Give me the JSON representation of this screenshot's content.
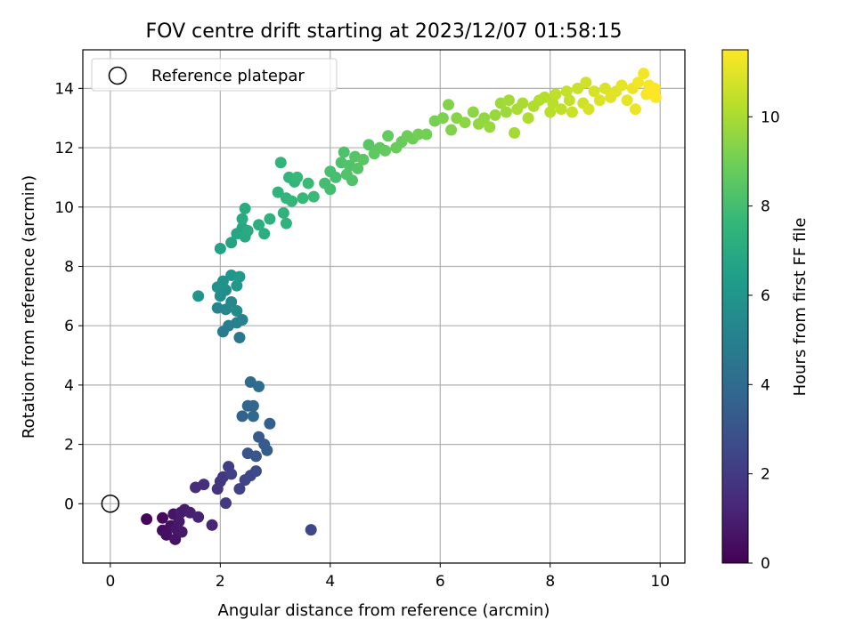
{
  "chart_data": {
    "type": "scatter",
    "title": "FOV centre drift starting at 2023/12/07 01:58:15",
    "xlabel": "Angular distance from reference (arcmin)",
    "ylabel": "Rotation from reference (arcmin)",
    "xlim": [
      -0.5,
      10.45
    ],
    "ylim": [
      -2.0,
      15.3
    ],
    "xticks": [
      0,
      2,
      4,
      6,
      8,
      10
    ],
    "yticks": [
      0,
      2,
      4,
      6,
      8,
      10,
      12,
      14
    ],
    "grid": true,
    "legend": {
      "placement": "top-left",
      "entries": [
        "Reference platepar"
      ]
    },
    "reference_point": {
      "x": 0,
      "y": 0
    },
    "colorbar": {
      "label": "Hours from first FF file",
      "range": [
        0,
        11.5
      ],
      "ticks": [
        0,
        2,
        4,
        6,
        8,
        10
      ],
      "colormap": "viridis",
      "colors": [
        "#440154",
        "#482878",
        "#3e4989",
        "#31688e",
        "#26828e",
        "#1f9e89",
        "#35b779",
        "#6ece58",
        "#b5de2b",
        "#fde725"
      ]
    },
    "points": [
      {
        "x": 0.66,
        "y": -0.52,
        "c": 0.2
      },
      {
        "x": 0.95,
        "y": -0.48,
        "c": 0.3
      },
      {
        "x": 0.95,
        "y": -0.9,
        "c": 0.4
      },
      {
        "x": 1.02,
        "y": -1.05,
        "c": 0.5
      },
      {
        "x": 1.1,
        "y": -0.75,
        "c": 0.5
      },
      {
        "x": 1.15,
        "y": -0.35,
        "c": 0.6
      },
      {
        "x": 1.18,
        "y": -1.2,
        "c": 0.6
      },
      {
        "x": 1.2,
        "y": -0.85,
        "c": 0.7
      },
      {
        "x": 1.25,
        "y": -0.6,
        "c": 0.8
      },
      {
        "x": 1.3,
        "y": -0.95,
        "c": 0.8
      },
      {
        "x": 1.35,
        "y": -0.2,
        "c": 0.9
      },
      {
        "x": 1.28,
        "y": -0.3,
        "c": 0.9
      },
      {
        "x": 1.45,
        "y": -0.3,
        "c": 1.0
      },
      {
        "x": 1.6,
        "y": -0.45,
        "c": 1.1
      },
      {
        "x": 1.85,
        "y": -0.72,
        "c": 1.2
      },
      {
        "x": 1.55,
        "y": 0.55,
        "c": 1.5
      },
      {
        "x": 1.7,
        "y": 0.65,
        "c": 1.6
      },
      {
        "x": 1.95,
        "y": 0.5,
        "c": 1.7
      },
      {
        "x": 2.0,
        "y": 0.75,
        "c": 1.8
      },
      {
        "x": 2.05,
        "y": 0.9,
        "c": 1.9
      },
      {
        "x": 2.1,
        "y": 0.02,
        "c": 2.0
      },
      {
        "x": 2.15,
        "y": 1.25,
        "c": 2.1
      },
      {
        "x": 2.2,
        "y": 1.0,
        "c": 2.2
      },
      {
        "x": 2.35,
        "y": 0.5,
        "c": 2.3
      },
      {
        "x": 2.45,
        "y": 0.8,
        "c": 2.4
      },
      {
        "x": 2.55,
        "y": 0.95,
        "c": 2.5
      },
      {
        "x": 2.65,
        "y": 1.1,
        "c": 2.6
      },
      {
        "x": 3.65,
        "y": -0.88,
        "c": 2.5
      },
      {
        "x": 2.5,
        "y": 1.7,
        "c": 3.0
      },
      {
        "x": 2.65,
        "y": 1.6,
        "c": 3.1
      },
      {
        "x": 2.7,
        "y": 2.25,
        "c": 3.2
      },
      {
        "x": 2.8,
        "y": 2.0,
        "c": 3.3
      },
      {
        "x": 2.85,
        "y": 1.8,
        "c": 3.4
      },
      {
        "x": 2.9,
        "y": 2.7,
        "c": 3.5
      },
      {
        "x": 2.4,
        "y": 2.95,
        "c": 3.6
      },
      {
        "x": 2.5,
        "y": 3.3,
        "c": 3.7
      },
      {
        "x": 2.6,
        "y": 3.3,
        "c": 3.8
      },
      {
        "x": 2.6,
        "y": 2.95,
        "c": 3.9
      },
      {
        "x": 2.55,
        "y": 4.1,
        "c": 4.0
      },
      {
        "x": 2.7,
        "y": 3.95,
        "c": 4.1
      },
      {
        "x": 2.35,
        "y": 5.6,
        "c": 4.6
      },
      {
        "x": 2.05,
        "y": 5.8,
        "c": 4.8
      },
      {
        "x": 2.15,
        "y": 6.0,
        "c": 4.9
      },
      {
        "x": 2.3,
        "y": 6.1,
        "c": 5.0
      },
      {
        "x": 2.4,
        "y": 6.2,
        "c": 5.1
      },
      {
        "x": 1.95,
        "y": 6.6,
        "c": 5.2
      },
      {
        "x": 2.1,
        "y": 6.55,
        "c": 5.3
      },
      {
        "x": 2.2,
        "y": 6.8,
        "c": 5.4
      },
      {
        "x": 2.3,
        "y": 6.5,
        "c": 5.5
      },
      {
        "x": 2.0,
        "y": 7.0,
        "c": 5.6
      },
      {
        "x": 2.1,
        "y": 7.2,
        "c": 5.7
      },
      {
        "x": 1.95,
        "y": 7.3,
        "c": 5.8
      },
      {
        "x": 2.05,
        "y": 7.5,
        "c": 5.9
      },
      {
        "x": 2.2,
        "y": 7.7,
        "c": 6.0
      },
      {
        "x": 2.3,
        "y": 7.35,
        "c": 6.1
      },
      {
        "x": 2.35,
        "y": 7.65,
        "c": 6.2
      },
      {
        "x": 1.6,
        "y": 7.0,
        "c": 6.0
      },
      {
        "x": 2.0,
        "y": 8.6,
        "c": 6.6
      },
      {
        "x": 2.2,
        "y": 8.8,
        "c": 6.7
      },
      {
        "x": 2.3,
        "y": 9.1,
        "c": 6.8
      },
      {
        "x": 2.4,
        "y": 9.3,
        "c": 6.8
      },
      {
        "x": 2.45,
        "y": 9.0,
        "c": 6.9
      },
      {
        "x": 2.5,
        "y": 9.2,
        "c": 7.0
      },
      {
        "x": 2.4,
        "y": 9.6,
        "c": 7.0
      },
      {
        "x": 2.45,
        "y": 9.95,
        "c": 7.1
      },
      {
        "x": 2.7,
        "y": 9.4,
        "c": 7.2
      },
      {
        "x": 2.8,
        "y": 9.1,
        "c": 7.2
      },
      {
        "x": 2.9,
        "y": 9.6,
        "c": 7.3
      },
      {
        "x": 3.05,
        "y": 10.5,
        "c": 7.4
      },
      {
        "x": 3.15,
        "y": 9.8,
        "c": 7.4
      },
      {
        "x": 3.2,
        "y": 10.3,
        "c": 7.5
      },
      {
        "x": 3.25,
        "y": 11.0,
        "c": 7.5
      },
      {
        "x": 3.3,
        "y": 10.2,
        "c": 7.6
      },
      {
        "x": 3.35,
        "y": 10.85,
        "c": 7.6
      },
      {
        "x": 3.4,
        "y": 11.0,
        "c": 7.7
      },
      {
        "x": 3.5,
        "y": 10.3,
        "c": 7.7
      },
      {
        "x": 3.6,
        "y": 10.8,
        "c": 7.8
      },
      {
        "x": 3.7,
        "y": 10.35,
        "c": 7.8
      },
      {
        "x": 3.1,
        "y": 11.5,
        "c": 7.5
      },
      {
        "x": 3.2,
        "y": 9.45,
        "c": 7.4
      },
      {
        "x": 3.9,
        "y": 10.8,
        "c": 8.0
      },
      {
        "x": 4.0,
        "y": 10.6,
        "c": 8.0
      },
      {
        "x": 4.0,
        "y": 11.2,
        "c": 8.1
      },
      {
        "x": 4.1,
        "y": 11.0,
        "c": 8.1
      },
      {
        "x": 4.2,
        "y": 11.5,
        "c": 8.2
      },
      {
        "x": 4.25,
        "y": 11.85,
        "c": 8.2
      },
      {
        "x": 4.3,
        "y": 11.1,
        "c": 8.3
      },
      {
        "x": 4.35,
        "y": 11.4,
        "c": 8.3
      },
      {
        "x": 4.4,
        "y": 10.9,
        "c": 8.3
      },
      {
        "x": 4.45,
        "y": 11.7,
        "c": 8.4
      },
      {
        "x": 4.5,
        "y": 11.3,
        "c": 8.4
      },
      {
        "x": 4.6,
        "y": 11.6,
        "c": 8.5
      },
      {
        "x": 4.7,
        "y": 12.1,
        "c": 8.5
      },
      {
        "x": 4.8,
        "y": 11.8,
        "c": 8.6
      },
      {
        "x": 4.9,
        "y": 12.0,
        "c": 8.6
      },
      {
        "x": 5.0,
        "y": 11.9,
        "c": 8.7
      },
      {
        "x": 5.05,
        "y": 12.4,
        "c": 8.7
      },
      {
        "x": 5.2,
        "y": 12.0,
        "c": 8.8
      },
      {
        "x": 5.3,
        "y": 12.2,
        "c": 8.8
      },
      {
        "x": 5.4,
        "y": 12.4,
        "c": 8.9
      },
      {
        "x": 5.5,
        "y": 12.3,
        "c": 8.9
      },
      {
        "x": 5.6,
        "y": 12.45,
        "c": 9.0
      },
      {
        "x": 5.75,
        "y": 12.45,
        "c": 9.0
      },
      {
        "x": 5.9,
        "y": 12.9,
        "c": 9.1
      },
      {
        "x": 6.05,
        "y": 13.0,
        "c": 9.2
      },
      {
        "x": 6.15,
        "y": 13.45,
        "c": 9.3
      },
      {
        "x": 6.2,
        "y": 12.6,
        "c": 9.3
      },
      {
        "x": 6.3,
        "y": 13.0,
        "c": 9.4
      },
      {
        "x": 6.45,
        "y": 12.85,
        "c": 9.5
      },
      {
        "x": 6.6,
        "y": 13.2,
        "c": 9.5
      },
      {
        "x": 6.7,
        "y": 12.8,
        "c": 9.6
      },
      {
        "x": 6.8,
        "y": 13.0,
        "c": 9.6
      },
      {
        "x": 6.9,
        "y": 12.7,
        "c": 9.7
      },
      {
        "x": 7.0,
        "y": 13.1,
        "c": 9.7
      },
      {
        "x": 7.1,
        "y": 13.5,
        "c": 9.8
      },
      {
        "x": 7.2,
        "y": 13.2,
        "c": 9.8
      },
      {
        "x": 7.25,
        "y": 13.6,
        "c": 9.9
      },
      {
        "x": 7.35,
        "y": 12.5,
        "c": 9.9
      },
      {
        "x": 7.4,
        "y": 13.3,
        "c": 10.0
      },
      {
        "x": 7.5,
        "y": 13.5,
        "c": 10.0
      },
      {
        "x": 7.6,
        "y": 13.0,
        "c": 10.1
      },
      {
        "x": 7.7,
        "y": 13.4,
        "c": 10.1
      },
      {
        "x": 7.8,
        "y": 13.6,
        "c": 10.2
      },
      {
        "x": 7.9,
        "y": 13.7,
        "c": 10.2
      },
      {
        "x": 8.0,
        "y": 13.2,
        "c": 10.3
      },
      {
        "x": 8.05,
        "y": 13.5,
        "c": 10.3
      },
      {
        "x": 8.1,
        "y": 13.8,
        "c": 10.4
      },
      {
        "x": 8.2,
        "y": 13.3,
        "c": 10.4
      },
      {
        "x": 8.3,
        "y": 13.9,
        "c": 10.5
      },
      {
        "x": 8.35,
        "y": 13.6,
        "c": 10.5
      },
      {
        "x": 8.4,
        "y": 13.2,
        "c": 10.6
      },
      {
        "x": 8.5,
        "y": 14.0,
        "c": 10.6
      },
      {
        "x": 8.6,
        "y": 13.5,
        "c": 10.7
      },
      {
        "x": 8.65,
        "y": 14.2,
        "c": 10.7
      },
      {
        "x": 8.7,
        "y": 13.3,
        "c": 10.8
      },
      {
        "x": 8.8,
        "y": 13.9,
        "c": 10.8
      },
      {
        "x": 8.9,
        "y": 13.6,
        "c": 10.9
      },
      {
        "x": 9.0,
        "y": 14.0,
        "c": 10.9
      },
      {
        "x": 9.1,
        "y": 13.7,
        "c": 11.0
      },
      {
        "x": 9.2,
        "y": 13.9,
        "c": 11.0
      },
      {
        "x": 9.3,
        "y": 14.1,
        "c": 11.1
      },
      {
        "x": 9.4,
        "y": 13.6,
        "c": 11.1
      },
      {
        "x": 9.5,
        "y": 14.0,
        "c": 11.2
      },
      {
        "x": 9.55,
        "y": 13.3,
        "c": 11.2
      },
      {
        "x": 9.6,
        "y": 14.2,
        "c": 11.3
      },
      {
        "x": 9.7,
        "y": 14.5,
        "c": 11.3
      },
      {
        "x": 9.75,
        "y": 13.8,
        "c": 11.4
      },
      {
        "x": 9.8,
        "y": 14.1,
        "c": 11.4
      },
      {
        "x": 9.85,
        "y": 13.9,
        "c": 11.5
      },
      {
        "x": 9.9,
        "y": 14.0,
        "c": 11.5
      },
      {
        "x": 9.92,
        "y": 13.7,
        "c": 11.5
      }
    ]
  }
}
